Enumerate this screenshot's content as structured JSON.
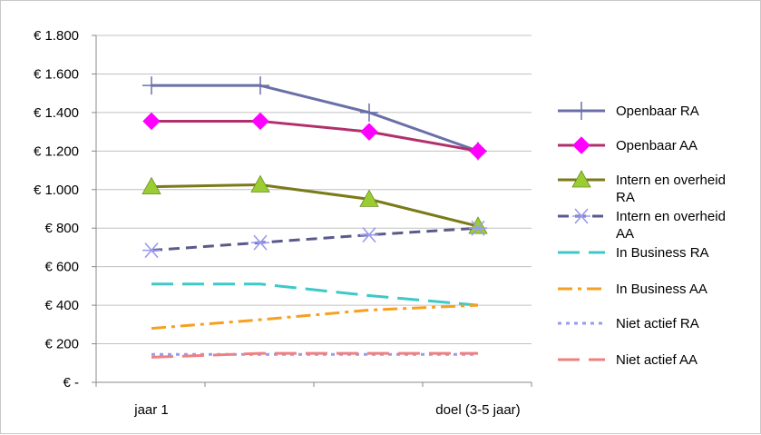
{
  "chart_data": {
    "type": "line",
    "title": "",
    "xlabel": "",
    "ylabel": "",
    "categories": [
      "jaar 1",
      "",
      "",
      "doel (3-5 jaar)"
    ],
    "ylim": [
      0,
      1800
    ],
    "yticks": [
      {
        "value": 0,
        "label": "€ -"
      },
      {
        "value": 200,
        "label": "€ 200"
      },
      {
        "value": 400,
        "label": "€ 400"
      },
      {
        "value": 600,
        "label": "€ 600"
      },
      {
        "value": 800,
        "label": "€ 800"
      },
      {
        "value": 1000,
        "label": "€ 1.000"
      },
      {
        "value": 1200,
        "label": "€ 1.200"
      },
      {
        "value": 1400,
        "label": "€ 1.400"
      },
      {
        "value": 1600,
        "label": "€ 1.600"
      },
      {
        "value": 1800,
        "label": "€ 1.800"
      }
    ],
    "grid": true,
    "legend_position": "right",
    "series": [
      {
        "name": "Openbaar RA",
        "values": [
          1540,
          1540,
          1400,
          1200
        ],
        "color": "#6a6fa8",
        "dash": "solid",
        "marker": "plus"
      },
      {
        "name": "Openbaar AA",
        "values": [
          1355,
          1355,
          1300,
          1200
        ],
        "color": "#b0306c",
        "dash": "solid",
        "marker": "diamond",
        "marker_color": "#ff00ff"
      },
      {
        "name": "Intern en overheid RA",
        "values": [
          1015,
          1025,
          950,
          810
        ],
        "color": "#7a7a18",
        "dash": "solid",
        "marker": "triangle",
        "marker_color": "#9acd32"
      },
      {
        "name": "Intern en overheid AA",
        "values": [
          685,
          725,
          765,
          800
        ],
        "color": "#5a5a8c",
        "dash": "dash",
        "marker": "star",
        "marker_color": "#9a9aee"
      },
      {
        "name": "In Business RA",
        "values": [
          510,
          510,
          450,
          400
        ],
        "color": "#3ec8c8",
        "dash": "longdash",
        "marker": "none"
      },
      {
        "name": "In Business AA",
        "values": [
          280,
          325,
          375,
          400
        ],
        "color": "#f5a020",
        "dash": "dashdot",
        "marker": "none"
      },
      {
        "name": "Niet actief RA",
        "values": [
          145,
          145,
          145,
          145
        ],
        "color": "#9a9aee",
        "dash": "dot",
        "marker": "none"
      },
      {
        "name": "Niet actief AA",
        "values": [
          130,
          150,
          150,
          150
        ],
        "color": "#f08080",
        "dash": "longdash",
        "marker": "none"
      }
    ]
  }
}
